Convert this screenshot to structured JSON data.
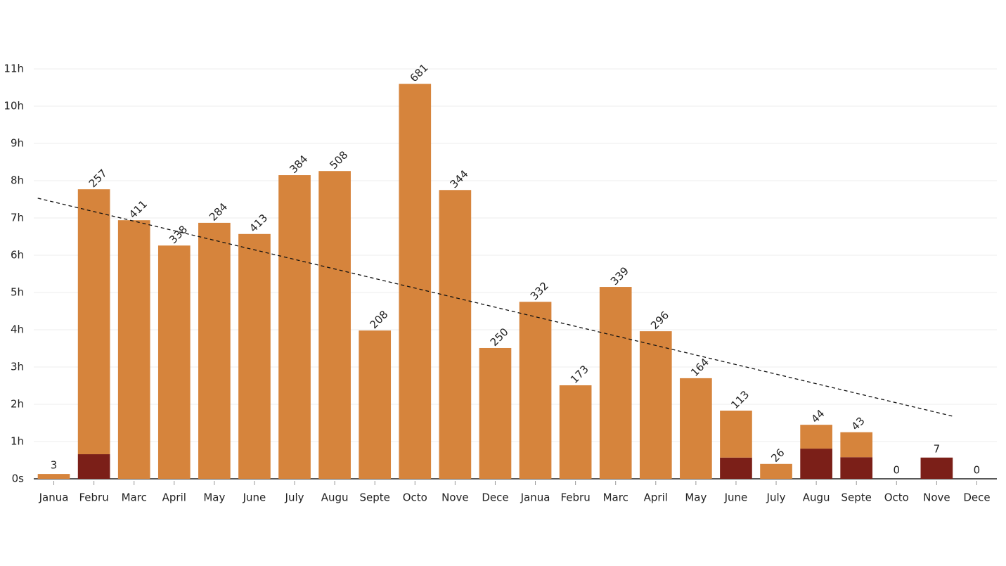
{
  "chart_data": {
    "type": "bar",
    "stacked": true,
    "categories": [
      "Janua",
      "Febru",
      "Marc",
      "April",
      "May",
      "June",
      "July",
      "Augu",
      "Septe",
      "Octo",
      "Nove",
      "Dece",
      "Janua",
      "Febru",
      "Marc",
      "April",
      "May",
      "June",
      "July",
      "Augu",
      "Septe",
      "Octo",
      "Nove",
      "Dece"
    ],
    "series": [
      {
        "color": "#7b1f18",
        "values": [
          0,
          0.66,
          0,
          0,
          0,
          0,
          0,
          0,
          0,
          0,
          0,
          0,
          0,
          0,
          0,
          0,
          0,
          0.57,
          0,
          0.81,
          0.58,
          0,
          0.57,
          0
        ]
      },
      {
        "color": "#d6843c",
        "values": [
          0.13,
          7.11,
          6.94,
          6.26,
          6.87,
          6.57,
          8.15,
          8.26,
          3.98,
          10.6,
          7.75,
          3.51,
          4.75,
          2.51,
          5.15,
          3.96,
          2.7,
          1.26,
          0.4,
          0.64,
          0.67,
          0,
          0,
          0
        ]
      }
    ],
    "labels": [
      3,
      257,
      411,
      338,
      284,
      413,
      384,
      508,
      208,
      681,
      344,
      250,
      332,
      173,
      339,
      296,
      164,
      113,
      26,
      44,
      43,
      0,
      7,
      0
    ],
    "trend": [
      7.53,
      1.68
    ],
    "ylim": [
      0,
      11
    ],
    "yticks": [
      {
        "value": 0,
        "label": "0s"
      },
      {
        "value": 1,
        "label": "1h"
      },
      {
        "value": 2,
        "label": "2h"
      },
      {
        "value": 3,
        "label": "3h"
      },
      {
        "value": 4,
        "label": "4h"
      },
      {
        "value": 5,
        "label": "5h"
      },
      {
        "value": 6,
        "label": "6h"
      },
      {
        "value": 7,
        "label": "7h"
      },
      {
        "value": 8,
        "label": "8h"
      },
      {
        "value": 9,
        "label": "9h"
      },
      {
        "value": 10,
        "label": "10h"
      },
      {
        "value": 11,
        "label": "11h"
      }
    ],
    "grid": true
  }
}
